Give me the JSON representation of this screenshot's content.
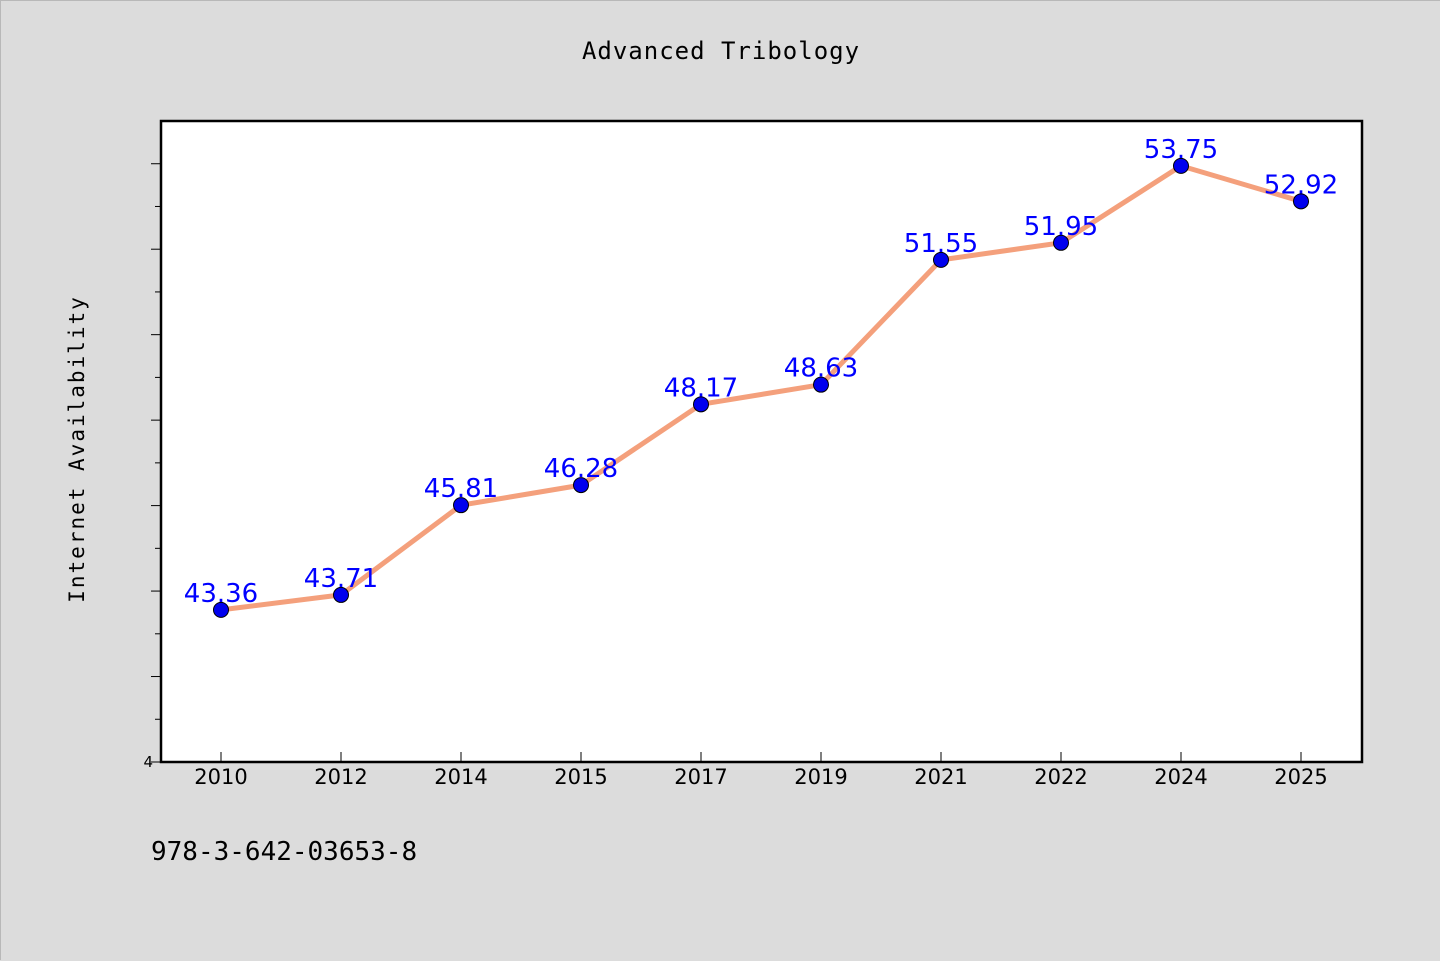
{
  "chart_data": {
    "type": "line",
    "title": "Advanced Tribology",
    "xlabel": "",
    "ylabel": "Internet Availability",
    "categories": [
      "2010",
      "2012",
      "2014",
      "2015",
      "2017",
      "2019",
      "2021",
      "2022",
      "2024",
      "2025"
    ],
    "series": [
      {
        "values": [
          43.36,
          43.71,
          45.81,
          46.28,
          48.17,
          48.63,
          51.55,
          51.95,
          53.75,
          52.92
        ],
        "data_labels": [
          "43.36",
          "43.71",
          "45.81",
          "46.28",
          "48.17",
          "48.63",
          "51.55",
          "51.95",
          "53.75",
          "52.92"
        ],
        "line_color": "#f4a07c",
        "marker_color": "#0000ee"
      }
    ],
    "ylim": [
      39.8,
      54.8
    ],
    "y_tick_labels": [
      "4"
    ],
    "grid": false,
    "legend": "none",
    "label_color": "#0000ff"
  },
  "footer": {
    "isbn": "978-3-642-03653-8"
  }
}
